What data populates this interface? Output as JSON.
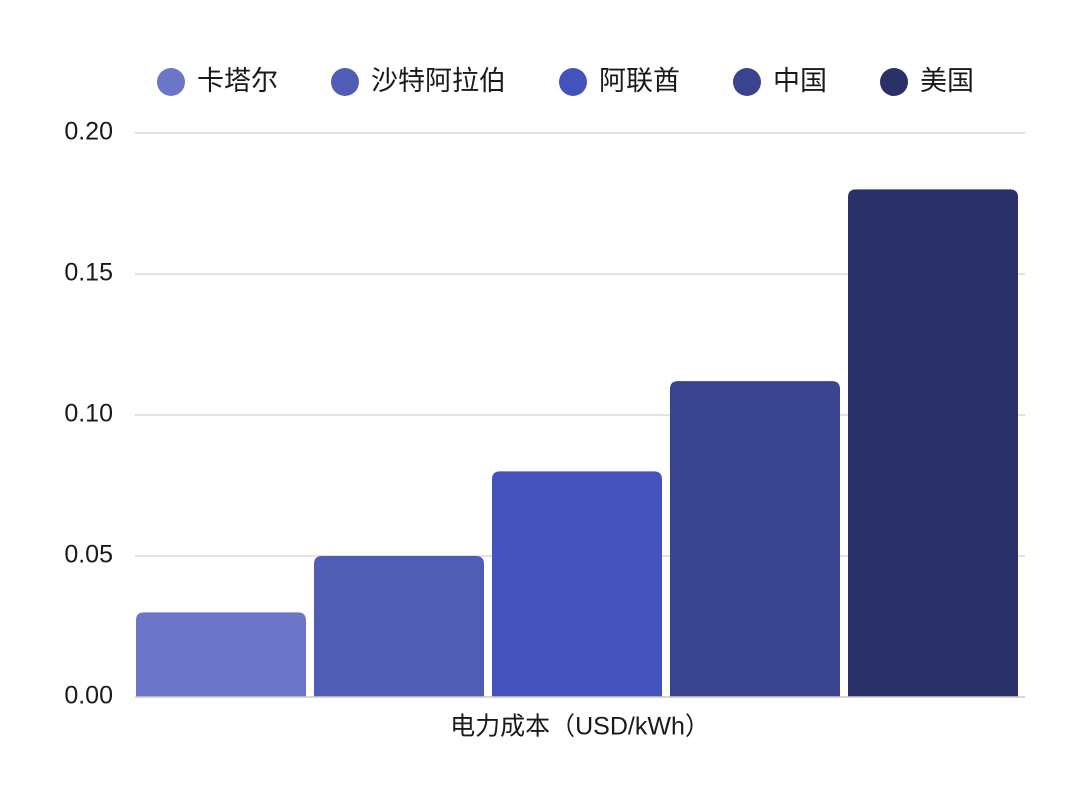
{
  "chart_data": {
    "type": "bar",
    "categories": [
      "电力成本（USD/kWh）"
    ],
    "series": [
      {
        "name": "卡塔尔",
        "color": "#6b76c8",
        "values": [
          0.03
        ]
      },
      {
        "name": "沙特阿拉伯",
        "color": "#515cb5",
        "values": [
          0.05
        ]
      },
      {
        "name": "阿联酋",
        "color": "#4452bb",
        "values": [
          0.08
        ]
      },
      {
        "name": "中国",
        "color": "#3a448e",
        "values": [
          0.112
        ]
      },
      {
        "name": "美国",
        "color": "#2a3068",
        "values": [
          0.18
        ]
      }
    ],
    "ylim": [
      0,
      0.2
    ],
    "yticks": [
      {
        "value": 0,
        "label": "0.00"
      },
      {
        "value": 0.05,
        "label": "0.05"
      },
      {
        "value": 0.1,
        "label": "0.10"
      },
      {
        "value": 0.15,
        "label": "0.15"
      },
      {
        "value": 0.2,
        "label": "0.20"
      }
    ],
    "grid": true,
    "legend": "top"
  }
}
